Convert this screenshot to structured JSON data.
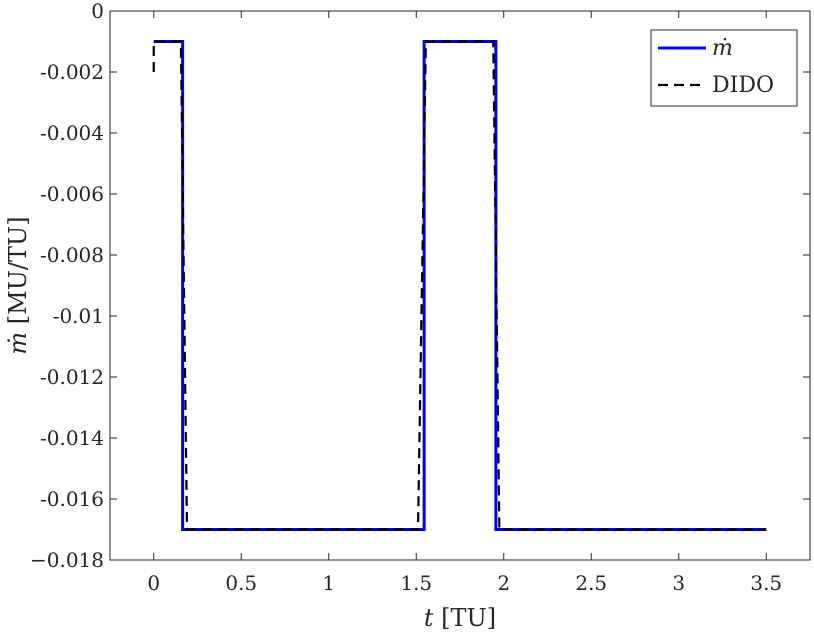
{
  "chart_data": {
    "type": "line",
    "title": "",
    "xlabel": {
      "var": "t",
      "unit": " [TU]"
    },
    "ylabel": {
      "var": "ṁ",
      "unit": " [MU/TU]"
    },
    "xlim": [
      -0.25,
      3.75
    ],
    "ylim": [
      -0.018,
      0
    ],
    "xticks": [
      0,
      0.5,
      1,
      1.5,
      2,
      2.5,
      3,
      3.5
    ],
    "xtick_labels": [
      "0",
      "0.5",
      "1",
      "1.5",
      "2",
      "2.5",
      "3",
      "3.5"
    ],
    "yticks": [
      0,
      -0.002,
      -0.004,
      -0.006,
      -0.008,
      -0.01,
      -0.012,
      -0.014,
      -0.016,
      -0.018
    ],
    "ytick_labels": [
      "0",
      "-0.002",
      "-0.004",
      "-0.006",
      "-0.008",
      "-0.01",
      "-0.012",
      "-0.014",
      "-0.016",
      "−0.018"
    ],
    "grid": false,
    "legend_position": "top-right",
    "series": [
      {
        "name": "ṁ",
        "color": "#0000ff",
        "style": "solid",
        "x": [
          0,
          0.165,
          0.165,
          1.545,
          1.545,
          1.955,
          1.955,
          3.5
        ],
        "y": [
          -0.001,
          -0.001,
          -0.017,
          -0.017,
          -0.001,
          -0.001,
          -0.017,
          -0.017
        ]
      },
      {
        "name": "DIDO",
        "color": "#000000",
        "style": "dashed",
        "x": [
          0,
          0,
          0.155,
          0.19,
          1.51,
          1.555,
          1.94,
          1.975,
          3.5
        ],
        "y": [
          -0.002,
          -0.001,
          -0.001,
          -0.017,
          -0.017,
          -0.001,
          -0.001,
          -0.017,
          -0.017
        ]
      }
    ]
  }
}
